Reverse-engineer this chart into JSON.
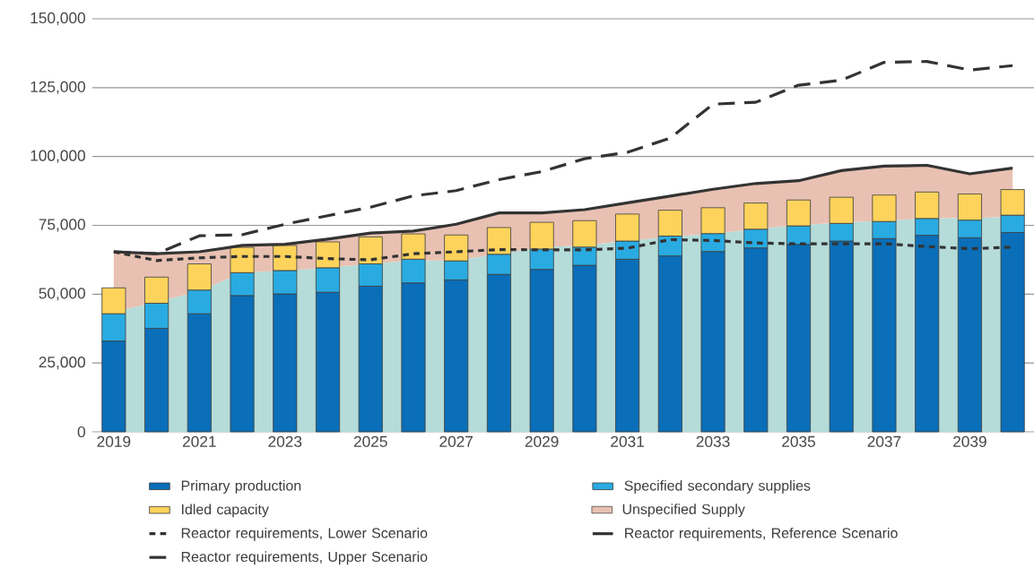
{
  "chart_data": [
    {
      "type": "area",
      "stacked": true,
      "grid": "y",
      "legend": "bottom",
      "categories": [
        "2019",
        null,
        "2021",
        null,
        "2023",
        null,
        "2025",
        null,
        "2027",
        null,
        "2029",
        null,
        "2031",
        null,
        "2033",
        null,
        "2035",
        null,
        "2037",
        null,
        "2039",
        null
      ],
      "ylim": [
        0,
        150000
      ],
      "yticks": [
        0,
        {
          "value": 25000,
          "label": "25,000"
        },
        {
          "value": 50000,
          "label": "50,000"
        },
        {
          "value": 75000,
          "label": "75,000"
        },
        {
          "value": 100000,
          "label": "100,000"
        },
        {
          "value": 125000,
          "label": "125,000"
        },
        {
          "value": 150000,
          "label": "150,000"
        }
      ],
      "series": [
        {
          "color": "#b5dcd9",
          "values": [
            43500,
            47200,
            51000,
            57900,
            58500,
            59700,
            61000,
            62200,
            62200,
            64700,
            67100,
            67700,
            69500,
            70800,
            72000,
            73600,
            75100,
            76000,
            76700,
            77600,
            77600,
            78200
          ]
        },
        {
          "name": "Unspecified Supply",
          "color": "#e8c1b2",
          "values": [
            21900,
            17500,
            14400,
            9800,
            9600,
            10300,
            11200,
            10700,
            13200,
            14800,
            12400,
            13000,
            13700,
            14800,
            16100,
            16600,
            16100,
            18900,
            19800,
            19200,
            16100,
            17600
          ]
        }
      ]
    },
    {
      "type": "bar",
      "stacked": true,
      "legend": "bottom",
      "tick_labels": false,
      "categories": [
        "2019",
        null,
        "2021",
        null,
        "2023",
        null,
        "2025",
        null,
        "2027",
        null,
        "2029",
        null,
        "2031",
        null,
        "2033",
        null,
        "2035",
        null,
        "2037",
        null,
        "2039",
        null
      ],
      "ylim": [
        0,
        150000
      ],
      "series": [
        {
          "name": "Primary production",
          "color": "#0a6eb8",
          "values": [
            33000,
            37600,
            42900,
            49500,
            50100,
            50700,
            52900,
            54100,
            55200,
            57200,
            59000,
            60500,
            62700,
            63900,
            65500,
            66800,
            68100,
            69300,
            70200,
            71400,
            70500,
            72400
          ]
        },
        {
          "name": "Specified secondary supplies",
          "color": "#29abe2",
          "values": [
            9900,
            9100,
            8600,
            8300,
            8500,
            8900,
            8100,
            8600,
            6900,
            7300,
            7400,
            6600,
            6600,
            7200,
            6500,
            6800,
            6700,
            6400,
            6200,
            6100,
            6400,
            6300
          ]
        },
        {
          "name": "Idled capacity",
          "color": "#fdd35b",
          "values": [
            9400,
            9500,
            9500,
            9200,
            9100,
            9400,
            9800,
            9200,
            9400,
            9700,
            9700,
            9600,
            9800,
            9400,
            9400,
            9500,
            9400,
            9500,
            9600,
            9600,
            9500,
            9300
          ]
        },
        {
          "name": "Reactor requirements, Lower Scenario",
          "type": "line",
          "line_style": "dotted",
          "color": "#333333",
          "values": [
            65400,
            62200,
            63200,
            63700,
            63700,
            62900,
            62500,
            64700,
            65400,
            66200,
            66100,
            66100,
            66700,
            69800,
            69500,
            68600,
            68300,
            68300,
            68300,
            67300,
            66500,
            67100
          ]
        },
        {
          "name": "Reactor requirements, Reference Scenario",
          "type": "line",
          "line_style": "solid",
          "color": "#333333",
          "values": [
            65400,
            64700,
            65400,
            67700,
            68100,
            70000,
            72200,
            72900,
            75400,
            79500,
            79500,
            80700,
            83200,
            85600,
            88100,
            90200,
            91200,
            94900,
            96500,
            96800,
            93700,
            95800
          ]
        },
        {
          "name": "Reactor requirements, Upper Scenario",
          "type": "line",
          "line_style": "dashed",
          "color": "#333333",
          "values": [
            65400,
            64700,
            71200,
            71600,
            75400,
            78500,
            81600,
            85700,
            87600,
            91600,
            94500,
            99200,
            101500,
            106700,
            119000,
            119700,
            125900,
            127700,
            134200,
            134500,
            131400,
            133000
          ]
        }
      ]
    }
  ]
}
